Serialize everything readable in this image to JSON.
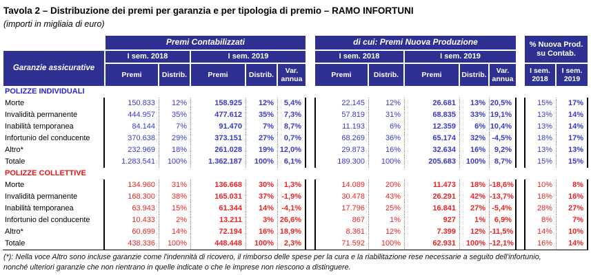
{
  "title": "Tavola 2 – Distribuzione dei premi per garanzia e per tipologia di premio – RAMO INFORTUNI",
  "subtitle": "(importi in migliaia di euro)",
  "colors": {
    "header_bg": "#2E3192",
    "value_blue": "#3838CC",
    "value_red": "#EE2222",
    "individual_blue": "#2525DB",
    "collective_red": "#EE1111",
    "separator": "#8a8a8a"
  },
  "header": {
    "row_label": "Garanzie assicurative",
    "groups": [
      {
        "label": "Premi Contabilizzati",
        "periods": [
          {
            "label": "I sem. 2018",
            "cols": [
              "Premi",
              "Distrib."
            ]
          },
          {
            "label": "I sem. 2019",
            "cols": [
              "Premi",
              "Distrib.",
              "Var. annua"
            ]
          }
        ]
      },
      {
        "label": "di cui: Premi Nuova Produzione",
        "periods": [
          {
            "label": "I sem. 2018",
            "cols": [
              "Premi",
              "Distrib."
            ]
          },
          {
            "label": "I sem. 2019",
            "cols": [
              "Premi",
              "Distrib.",
              "Var. annua"
            ]
          }
        ]
      },
      {
        "label": "% Nuova Prod. su Contab.",
        "cols": [
          "I sem. 2018",
          "I sem. 2019"
        ]
      }
    ]
  },
  "sections": [
    {
      "label": "POLIZZE INDIVIDUALI",
      "color": "blue",
      "rows": [
        {
          "label": "Morte",
          "values": [
            "150.833",
            "12%",
            "158.925",
            "12%",
            "5,4%",
            "22.145",
            "12%",
            "26.681",
            "13%",
            "20,5%",
            "15%",
            "17%"
          ]
        },
        {
          "label": "Invalidità permanente",
          "values": [
            "444.957",
            "35%",
            "477.612",
            "35%",
            "7,3%",
            "57.819",
            "31%",
            "68.835",
            "33%",
            "19,1%",
            "13%",
            "14%"
          ]
        },
        {
          "label": "Inabilità temporanea",
          "values": [
            "84.144",
            "7%",
            "91.470",
            "7%",
            "8,7%",
            "11.193",
            "6%",
            "12.359",
            "6%",
            "10,4%",
            "13%",
            "14%"
          ]
        },
        {
          "label": "Infortunio del conducente",
          "values": [
            "370.638",
            "29%",
            "373.151",
            "27%",
            "0,7%",
            "68.269",
            "36%",
            "65.174",
            "32%",
            "-4,5%",
            "18%",
            "17%"
          ]
        },
        {
          "label": "Altro*",
          "values": [
            "232.969",
            "18%",
            "261.028",
            "19%",
            "12,0%",
            "29.873",
            "16%",
            "32.634",
            "16%",
            "9,2%",
            "13%",
            "13%"
          ]
        },
        {
          "label": "Totale",
          "values": [
            "1.283.541",
            "100%",
            "1.362.187",
            "100%",
            "6,1%",
            "189.300",
            "100%",
            "205.683",
            "100%",
            "8,7%",
            "15%",
            "15%"
          ]
        }
      ]
    },
    {
      "label": "POLIZZE COLLETTIVE",
      "color": "red",
      "rows": [
        {
          "label": "Morte",
          "values": [
            "134.960",
            "31%",
            "136.668",
            "30%",
            "1,3%",
            "14.089",
            "20%",
            "11.473",
            "18%",
            "-18,6%",
            "10%",
            "8%"
          ]
        },
        {
          "label": "Invalidità permanente",
          "values": [
            "168.300",
            "38%",
            "165.031",
            "37%",
            "-1,9%",
            "30.478",
            "43%",
            "26.291",
            "42%",
            "-13,7%",
            "18%",
            "16%"
          ]
        },
        {
          "label": "Inabilità temporanea",
          "values": [
            "63.943",
            "15%",
            "61.344",
            "14%",
            "-4,1%",
            "17.796",
            "25%",
            "16.841",
            "27%",
            "-5,4%",
            "28%",
            "27%"
          ]
        },
        {
          "label": "Infortunio del conducente",
          "values": [
            "10.433",
            "2%",
            "13.211",
            "3%",
            "26,6%",
            "867",
            "1%",
            "927",
            "1%",
            "6,9%",
            "8%",
            "7%"
          ]
        },
        {
          "label": "Altro*",
          "values": [
            "60.699",
            "14%",
            "72.194",
            "16%",
            "18,9%",
            "8.361",
            "12%",
            "7.399",
            "12%",
            "-11,5%",
            "14%",
            "10%"
          ]
        },
        {
          "label": "Totale",
          "values": [
            "438.336",
            "100%",
            "448.448",
            "100%",
            "2,3%",
            "71.592",
            "100%",
            "62.931",
            "100%",
            "-12,1%",
            "16%",
            "14%"
          ]
        }
      ]
    }
  ],
  "footnote": {
    "line1": "(*): Nella voce Altro sono incluse garanzie come l'indennità di ricovero, il rimborso delle spese per la cura e la riabilitazione rese necessarie a seguito dell'infortunio,",
    "line2": "nonché ulteriori garanzie che non rientrano in quelle indicate o che le imprese non riescono a distinguere."
  }
}
